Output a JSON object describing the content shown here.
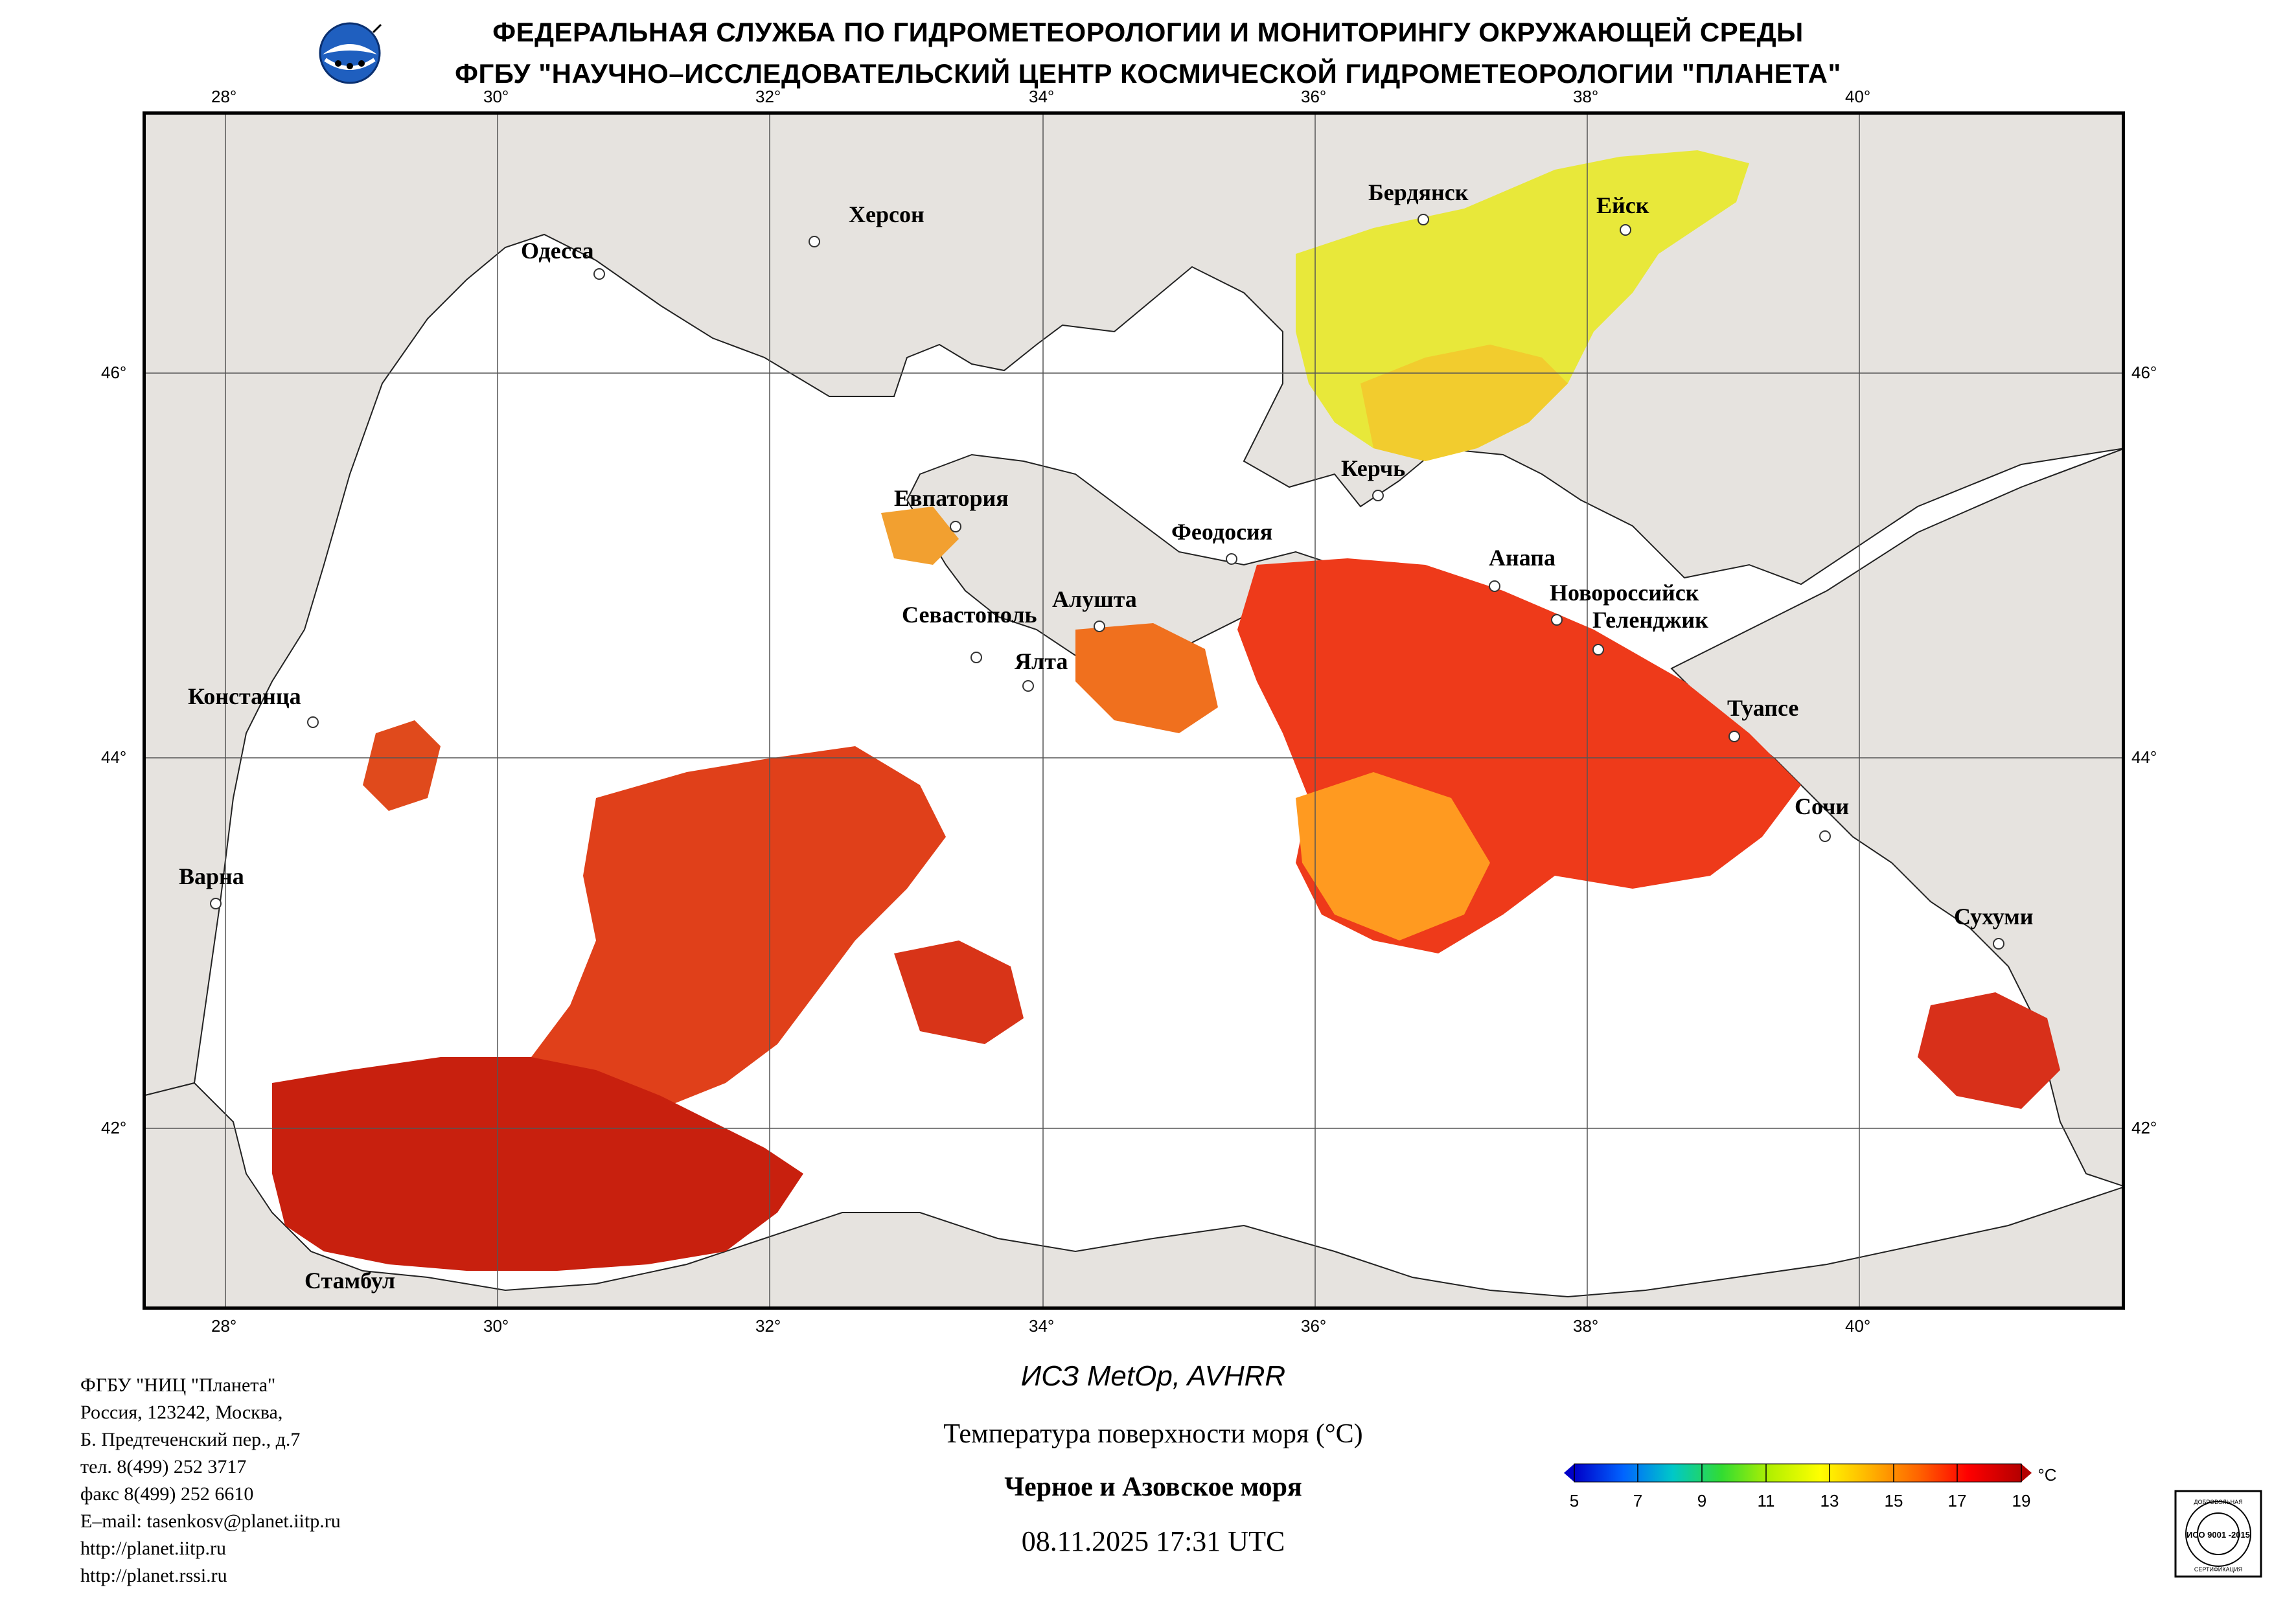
{
  "header": {
    "line1": "ФЕДЕРАЛЬНАЯ СЛУЖБА ПО ГИДРОМЕТЕОРОЛОГИИ И МОНИТОРИНГУ ОКРУЖАЮЩЕЙ СРЕДЫ",
    "line2": "ФГБУ \"НАУЧНО–ИССЛЕДОВАТЕЛЬСКИЙ ЦЕНТР КОСМИЧЕСКОЙ ГИДРОМЕТЕОРОЛОГИИ \"ПЛАНЕТА\""
  },
  "map": {
    "lon_ticks": [
      "28°",
      "30°",
      "32°",
      "34°",
      "36°",
      "38°",
      "40°"
    ],
    "lat_ticks": [
      "46°",
      "44°",
      "42°"
    ],
    "colors": {
      "land": "#e6e3df",
      "sea": "#ffffff",
      "grid": "#555555",
      "border": "#000000"
    },
    "cities": [
      {
        "name": "Одесса"
      },
      {
        "name": "Херсон"
      },
      {
        "name": "Бердянск"
      },
      {
        "name": "Ейск"
      },
      {
        "name": "Керчь"
      },
      {
        "name": "Евпатория"
      },
      {
        "name": "Феодосия"
      },
      {
        "name": "Анапа"
      },
      {
        "name": "Новороссийск"
      },
      {
        "name": "Геленджик"
      },
      {
        "name": "Севастополь"
      },
      {
        "name": "Алушта"
      },
      {
        "name": "Ялта"
      },
      {
        "name": "Констанца"
      },
      {
        "name": "Туапсе"
      },
      {
        "name": "Сочи"
      },
      {
        "name": "Варна"
      },
      {
        "name": "Сухуми"
      },
      {
        "name": "Стамбул"
      }
    ]
  },
  "footer": {
    "org_lines": [
      "ФГБУ \"НИЦ \"Планета\"",
      "Россия, 123242, Москва,",
      "Б. Предтеченский пер., д.7",
      "тел. 8(499) 252 3717",
      "факс 8(499) 252 6610",
      "E–mail: tasenkosv@planet.iitp.ru",
      "http://planet.iitp.ru",
      "http://planet.rssi.ru"
    ],
    "satellite": "ИСЗ MetOp, AVHRR",
    "parameter": "Температура поверхности моря (°С)",
    "region": "Черное и Азовское моря",
    "datetime": "08.11.2025 17:31 UTC"
  },
  "colorbar": {
    "unit": "°С",
    "ticks": [
      "5",
      "7",
      "9",
      "11",
      "13",
      "15",
      "17",
      "19"
    ],
    "colors": [
      "#0000c8",
      "#0064ff",
      "#00c8c8",
      "#32dc32",
      "#b4f000",
      "#ffff00",
      "#ffb400",
      "#ff6400",
      "#ff0000",
      "#b40000"
    ]
  },
  "cert": {
    "top": "ДОБРОВОЛЬНАЯ",
    "middle": "ИСО 9001 -2015",
    "bottom": "СЕРТИФИКАЦИЯ"
  }
}
